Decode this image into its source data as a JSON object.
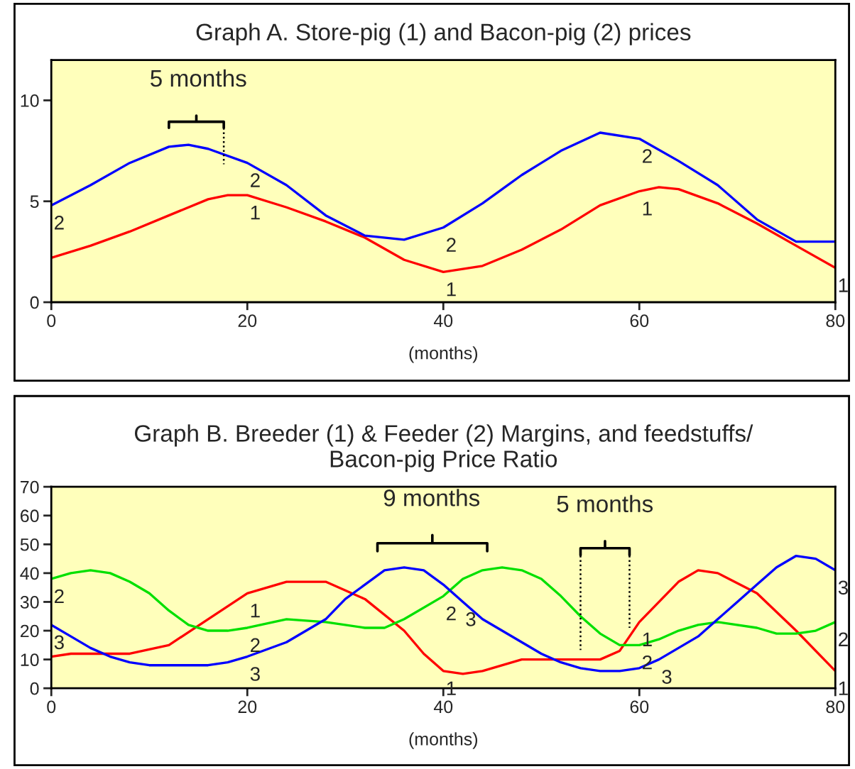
{
  "chart_data": [
    {
      "type": "line",
      "title": "Graph A. Store-pig (1) and Bacon-pig (2) prices",
      "xlabel": "(months)",
      "xlim": [
        0,
        80
      ],
      "xticks": [
        0,
        20,
        40,
        60,
        80
      ],
      "ylim": [
        0,
        12
      ],
      "yticks": [
        0,
        5,
        10
      ],
      "grid": false,
      "legend": false,
      "series": [
        {
          "color": "#ff0000",
          "x": [
            0,
            4,
            8,
            12,
            16,
            18,
            20,
            24,
            28,
            32,
            36,
            40,
            44,
            48,
            52,
            56,
            60,
            62,
            64,
            68,
            72,
            76,
            80
          ],
          "values": [
            2.2,
            2.8,
            3.5,
            4.3,
            5.1,
            5.3,
            5.3,
            4.7,
            4.0,
            3.2,
            2.1,
            1.5,
            1.8,
            2.6,
            3.6,
            4.8,
            5.5,
            5.7,
            5.6,
            4.9,
            3.9,
            2.8,
            1.7
          ]
        },
        {
          "color": "#0000ff",
          "x": [
            0,
            4,
            8,
            12,
            14,
            16,
            20,
            24,
            28,
            32,
            36,
            40,
            44,
            48,
            52,
            56,
            60,
            64,
            68,
            72,
            76,
            80
          ],
          "values": [
            4.8,
            5.8,
            6.9,
            7.7,
            7.8,
            7.6,
            6.9,
            5.8,
            4.3,
            3.3,
            3.1,
            3.7,
            4.9,
            6.3,
            7.5,
            8.4,
            8.1,
            7.0,
            5.8,
            4.1,
            3.0,
            3.0
          ]
        }
      ],
      "annotations": [
        "5 months",
        {
          "text": "2",
          "x": 0,
          "y": 4.8
        },
        {
          "text": "2",
          "x": 20,
          "y": 6.9
        },
        {
          "text": "2",
          "x": 40,
          "y": 3.7
        },
        {
          "text": "2",
          "x": 60,
          "y": 8.1
        },
        {
          "text": "1",
          "x": 20,
          "y": 5.3
        },
        {
          "text": "1",
          "x": 40,
          "y": 1.5
        },
        {
          "text": "1",
          "x": 60,
          "y": 5.5
        },
        {
          "text": "1",
          "x": 80,
          "y": 1.7
        }
      ]
    },
    {
      "type": "line",
      "title": "Graph B. Breeder (1) & Feeder (2) Margins, and feedstuffs/\nBacon-pig Price Ratio",
      "xlabel": "(months)",
      "xlim": [
        0,
        80
      ],
      "xticks": [
        0,
        20,
        40,
        60,
        80
      ],
      "ylim": [
        0,
        70
      ],
      "yticks": [
        0,
        10,
        20,
        30,
        40,
        50,
        60,
        70
      ],
      "grid": false,
      "legend": false,
      "series": [
        {
          "color": "#ff0000",
          "x": [
            0,
            2,
            8,
            12,
            16,
            20,
            24,
            28,
            32,
            36,
            38,
            40,
            42,
            44,
            48,
            52,
            56,
            58,
            60,
            64,
            66,
            68,
            72,
            76,
            80
          ],
          "values": [
            11,
            12,
            12,
            15,
            24,
            33,
            37,
            37,
            31,
            20,
            12,
            6,
            5,
            6,
            10,
            10,
            10,
            13,
            23,
            37,
            41,
            40,
            33,
            20,
            6
          ]
        },
        {
          "color": "#00e000",
          "x": [
            0,
            2,
            4,
            6,
            8,
            10,
            12,
            14,
            16,
            18,
            20,
            24,
            28,
            32,
            34,
            36,
            40,
            42,
            44,
            46,
            48,
            50,
            52,
            54,
            56,
            58,
            60,
            62,
            64,
            66,
            68,
            72,
            74,
            76,
            78,
            80
          ],
          "values": [
            38,
            40,
            41,
            40,
            37,
            33,
            27,
            22,
            20,
            20,
            21,
            24,
            23,
            21,
            21,
            24,
            32,
            38,
            41,
            42,
            41,
            38,
            32,
            25,
            19,
            15,
            15,
            17,
            20,
            22,
            23,
            21,
            19,
            19,
            20,
            23
          ]
        },
        {
          "color": "#0000ff",
          "x": [
            0,
            2,
            4,
            6,
            8,
            10,
            12,
            16,
            18,
            20,
            24,
            28,
            30,
            32,
            34,
            36,
            38,
            40,
            42,
            44,
            48,
            50,
            52,
            54,
            56,
            58,
            60,
            62,
            64,
            66,
            68,
            70,
            72,
            74,
            76,
            78,
            80
          ],
          "values": [
            22,
            18,
            14,
            11,
            9,
            8,
            8,
            8,
            9,
            11,
            16,
            24,
            31,
            36,
            41,
            42,
            41,
            36,
            30,
            24,
            16,
            12,
            9,
            7,
            6,
            6,
            7,
            10,
            14,
            18,
            24,
            30,
            36,
            42,
            46,
            45,
            41
          ]
        }
      ],
      "annotations": [
        "9 months",
        "5 months",
        {
          "text": "1",
          "x": 20,
          "y": 33
        },
        {
          "text": "1",
          "x": 40,
          "y": 6
        },
        {
          "text": "1",
          "x": 60,
          "y": 23
        },
        {
          "text": "1",
          "x": 80,
          "y": 6
        },
        {
          "text": "2",
          "x": 0,
          "y": 38
        },
        {
          "text": "2",
          "x": 20,
          "y": 21
        },
        {
          "text": "2",
          "x": 40,
          "y": 32
        },
        {
          "text": "2",
          "x": 60,
          "y": 15
        },
        {
          "text": "2",
          "x": 80,
          "y": 23
        },
        {
          "text": "3",
          "x": 0,
          "y": 22
        },
        {
          "text": "3",
          "x": 20,
          "y": 11
        },
        {
          "text": "3",
          "x": 42,
          "y": 30
        },
        {
          "text": "3",
          "x": 62,
          "y": 10
        },
        {
          "text": "3",
          "x": 80,
          "y": 41
        }
      ]
    }
  ]
}
